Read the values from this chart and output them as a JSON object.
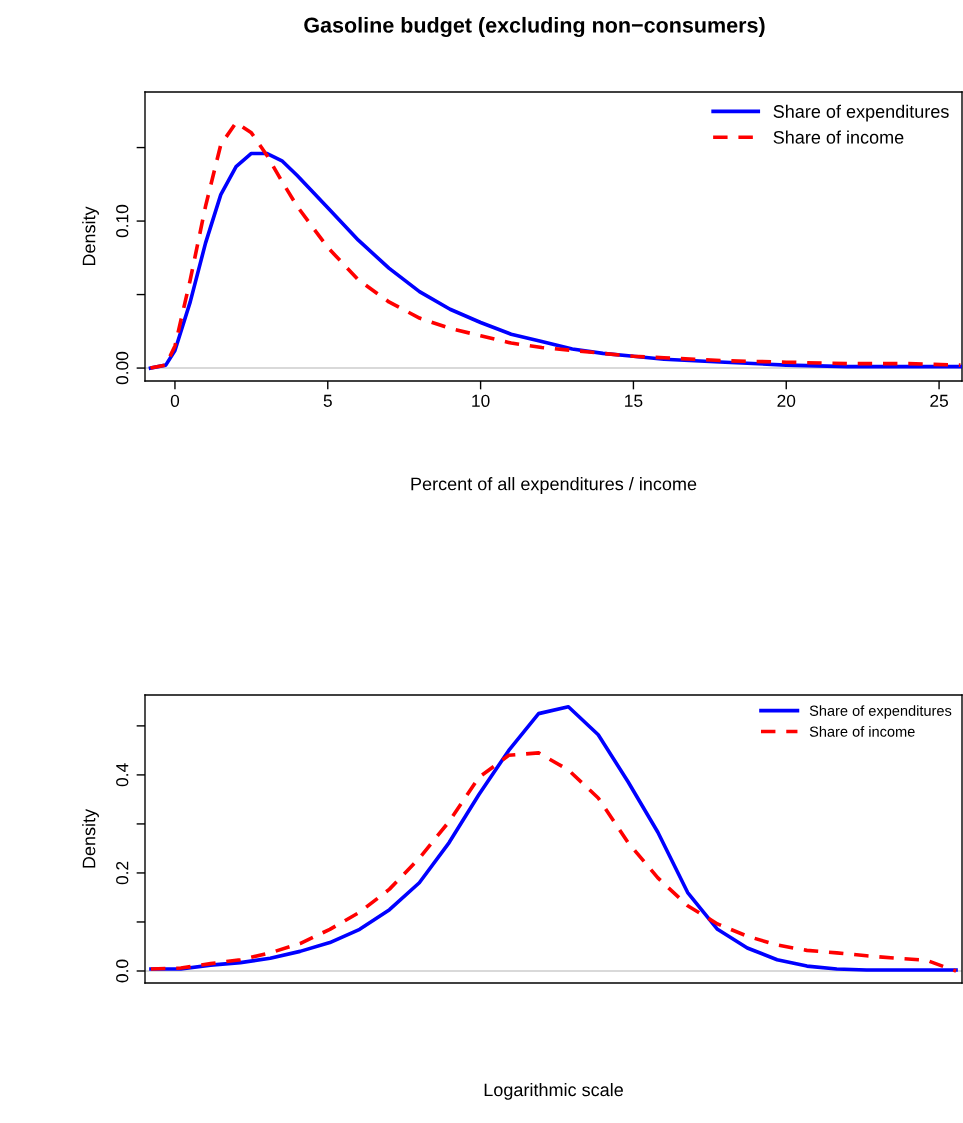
{
  "chart_data": [
    {
      "type": "line",
      "title": "Gasoline budget (excluding non−consumers)",
      "xlabel": "Percent of all expenditures / income",
      "ylabel": "Density",
      "xlim": [
        -0.98,
        25.75
      ],
      "xticks": [
        0,
        5,
        10,
        15,
        20,
        25
      ],
      "ylim": [
        -0.0088,
        0.1878
      ],
      "yticks": [
        {
          "value": 0,
          "label": "0.00"
        },
        {
          "value": 0.05,
          "label": null
        },
        {
          "value": 0.1,
          "label": "0.10"
        },
        {
          "value": 0.15,
          "label": null
        }
      ],
      "legend": "top right",
      "ref_lines": [
        {
          "axis": "y",
          "value": 0,
          "color": "#cccccc"
        }
      ],
      "series": [
        {
          "name": "Share of expenditures",
          "color": "#0000ff",
          "line_style": "solid",
          "x": [
            -0.8,
            -0.3,
            0,
            0.5,
            1,
            1.5,
            2,
            2.5,
            3,
            3.5,
            4,
            5,
            6,
            7,
            8,
            9,
            10,
            11,
            12,
            13,
            14,
            15,
            16,
            17,
            18,
            20,
            22,
            24,
            25.7
          ],
          "values": [
            0,
            0.002,
            0.012,
            0.045,
            0.085,
            0.118,
            0.137,
            0.146,
            0.146,
            0.141,
            0.131,
            0.109,
            0.087,
            0.068,
            0.052,
            0.04,
            0.031,
            0.023,
            0.018,
            0.013,
            0.01,
            0.008,
            0.006,
            0.005,
            0.004,
            0.002,
            0.001,
            0.001,
            0.001
          ]
        },
        {
          "name": "Share of income",
          "color": "#ff0000",
          "line_style": "dashed",
          "x": [
            -0.8,
            -0.3,
            0,
            0.5,
            1,
            1.5,
            2,
            2.5,
            3,
            3.5,
            4,
            5,
            6,
            7,
            8,
            9,
            10,
            11,
            12,
            13,
            14,
            15,
            16,
            17,
            18,
            20,
            22,
            24,
            25.7
          ],
          "values": [
            0,
            0.002,
            0.015,
            0.06,
            0.11,
            0.152,
            0.167,
            0.16,
            0.145,
            0.127,
            0.11,
            0.082,
            0.06,
            0.045,
            0.034,
            0.027,
            0.022,
            0.017,
            0.014,
            0.012,
            0.01,
            0.008,
            0.007,
            0.006,
            0.005,
            0.004,
            0.003,
            0.003,
            0.002
          ]
        }
      ]
    },
    {
      "type": "line",
      "xlabel": "Logarithmic scale",
      "ylabel": "Density",
      "tick_labels": "y",
      "categories": [
        null,
        null,
        null,
        null,
        null,
        null,
        null,
        null,
        null,
        null,
        null,
        null,
        null,
        null,
        null,
        null,
        null,
        null,
        null,
        null,
        null,
        null,
        null,
        null,
        null,
        null,
        null,
        null
      ],
      "ylim": [
        -0.0245,
        0.563
      ],
      "yticks": [
        {
          "value": 0,
          "label": "0.0"
        },
        {
          "value": 0.1,
          "label": null
        },
        0.2,
        {
          "value": 0.3,
          "label": null
        },
        0.4,
        {
          "value": 0.5,
          "label": null
        }
      ],
      "legend": "top right",
      "ref_lines": [
        {
          "axis": "y",
          "value": 0,
          "color": "#cccccc"
        }
      ],
      "series": [
        {
          "name": "Share of expenditures",
          "color": "#0000ff",
          "line_style": "solid",
          "values": [
            0.004,
            0.004,
            0.012,
            0.017,
            0.026,
            0.04,
            0.058,
            0.085,
            0.125,
            0.18,
            0.262,
            0.36,
            0.45,
            0.525,
            0.539,
            0.482,
            0.386,
            0.283,
            0.16,
            0.085,
            0.047,
            0.023,
            0.01,
            0.004,
            0.002,
            0.002,
            0.002,
            0.002
          ]
        },
        {
          "name": "Share of income",
          "color": "#ff0000",
          "line_style": "dashed",
          "values": [
            0.004,
            0.006,
            0.015,
            0.023,
            0.037,
            0.056,
            0.085,
            0.12,
            0.167,
            0.23,
            0.305,
            0.395,
            0.44,
            0.445,
            0.41,
            0.353,
            0.262,
            0.19,
            0.133,
            0.096,
            0.071,
            0.053,
            0.042,
            0.037,
            0.031,
            0.026,
            0.022,
            0.0
          ]
        }
      ]
    }
  ]
}
